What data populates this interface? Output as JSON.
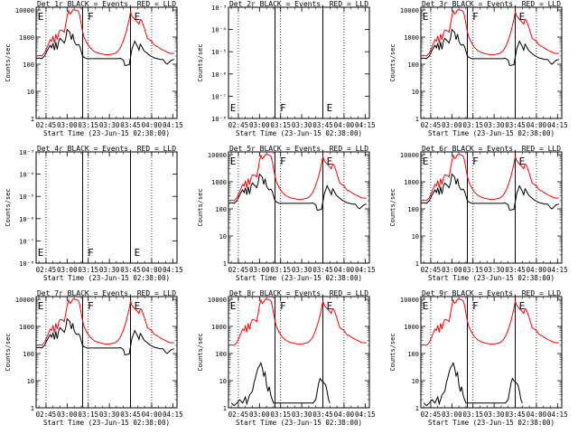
{
  "colors": {
    "events": "#000000",
    "lld": "#ff0000",
    "background": "#ffffff"
  },
  "panel_titles": [
    "Det 1r BLACK = Events, RED = LLD",
    "Det 2r BLACK = Events, RED = LLD",
    "Det 3r BLACK = Events, RED = LLD",
    "Det 4r BLACK = Events, RED = LLD",
    "Det 5r BLACK = Events, RED = LLD",
    "Det 6r BLACK = Events, RED = LLD",
    "Det 7r BLACK = Events, RED = LLD",
    "Det 8r BLACK = Events, RED = LLD",
    "Det 9r BLACK = Events, RED = LLD"
  ],
  "chart_data": {
    "type": "line",
    "xlabel": "Start Time (23-Jun-15 02:38:00)",
    "ylabel": "Counts/sec",
    "x_range_minutes": [
      0,
      100
    ],
    "x_ticks": [
      {
        "label": "02:45",
        "minutes": 7
      },
      {
        "label": "03:00",
        "minutes": 22
      },
      {
        "label": "03:15",
        "minutes": 37
      },
      {
        "label": "03:30",
        "minutes": 52
      },
      {
        "label": "03:45",
        "minutes": 67
      },
      {
        "label": "04:00",
        "minutes": 82
      },
      {
        "label": "04:15",
        "minutes": 97
      }
    ],
    "y_log_ticks_normal": [
      {
        "label": "1",
        "value": 1
      },
      {
        "label": "10",
        "value": 10
      },
      {
        "label": "100",
        "value": 100
      },
      {
        "label": "1000",
        "value": 1000
      },
      {
        "label": "10000",
        "value": 10000
      }
    ],
    "y_ticks_tiny": [
      {
        "label": "10⁻⁸",
        "frac": 0.0
      },
      {
        "label": "10⁻⁷",
        "frac": 0.2
      },
      {
        "label": "10⁻⁶",
        "frac": 0.4
      },
      {
        "label": "10⁻⁵",
        "frac": 0.6
      },
      {
        "label": "10⁻⁴",
        "frac": 0.8
      },
      {
        "label": "10⁻³",
        "frac": 1.0
      }
    ],
    "dotted_lines_minutes": [
      7,
      37,
      82
    ],
    "solid_lines_minutes": [
      33,
      67
    ],
    "segment_flags": [
      {
        "label": "E",
        "minutes": 0.5
      },
      {
        "label": "F",
        "minutes": 36
      },
      {
        "label": "E",
        "minutes": 69
      }
    ],
    "events_typical": [
      [
        0,
        160
      ],
      [
        2,
        170
      ],
      [
        4,
        160
      ],
      [
        6,
        200
      ],
      [
        8,
        330
      ],
      [
        10,
        500
      ],
      [
        11,
        400
      ],
      [
        12,
        600
      ],
      [
        13,
        330
      ],
      [
        14,
        650
      ],
      [
        15,
        350
      ],
      [
        16,
        700
      ],
      [
        17,
        900
      ],
      [
        19,
        700
      ],
      [
        20,
        600
      ],
      [
        21,
        900
      ],
      [
        22,
        1900
      ],
      [
        24,
        1500
      ],
      [
        25,
        800
      ],
      [
        26,
        1300
      ],
      [
        27,
        700
      ],
      [
        28,
        550
      ],
      [
        29,
        500
      ],
      [
        30,
        540
      ],
      [
        31,
        450
      ],
      [
        32,
        300
      ],
      [
        33,
        200
      ],
      [
        34,
        180
      ],
      [
        36,
        160
      ],
      [
        40,
        160
      ],
      [
        45,
        160
      ],
      [
        50,
        160
      ],
      [
        55,
        160
      ],
      [
        58,
        160
      ],
      [
        60,
        165
      ],
      [
        62,
        140
      ],
      [
        63,
        90
      ],
      [
        64,
        90
      ],
      [
        65,
        95
      ],
      [
        66,
        95
      ],
      [
        68,
        360
      ],
      [
        69,
        500
      ],
      [
        70,
        700
      ],
      [
        71,
        560
      ],
      [
        72,
        450
      ],
      [
        73,
        330
      ],
      [
        74,
        550
      ],
      [
        75,
        450
      ],
      [
        76,
        350
      ],
      [
        77,
        300
      ],
      [
        79,
        250
      ],
      [
        80,
        220
      ],
      [
        82,
        190
      ],
      [
        84,
        170
      ],
      [
        86,
        160
      ],
      [
        88,
        150
      ],
      [
        90,
        150
      ],
      [
        92,
        110
      ],
      [
        93,
        100
      ],
      [
        96,
        140
      ],
      [
        98,
        150
      ]
    ],
    "lld_typical": [
      [
        0,
        200
      ],
      [
        2,
        210
      ],
      [
        4,
        200
      ],
      [
        6,
        260
      ],
      [
        8,
        450
      ],
      [
        10,
        800
      ],
      [
        11,
        700
      ],
      [
        12,
        1100
      ],
      [
        13,
        600
      ],
      [
        14,
        1300
      ],
      [
        15,
        800
      ],
      [
        16,
        1400
      ],
      [
        17,
        1800
      ],
      [
        19,
        1700
      ],
      [
        20,
        1500
      ],
      [
        21,
        3000
      ],
      [
        22,
        6000
      ],
      [
        23,
        9500
      ],
      [
        24,
        7000
      ],
      [
        25,
        8000
      ],
      [
        26,
        10000
      ],
      [
        28,
        10000
      ],
      [
        30,
        9000
      ],
      [
        31,
        6000
      ],
      [
        32,
        3000
      ],
      [
        33,
        1600
      ],
      [
        34,
        1000
      ],
      [
        36,
        600
      ],
      [
        38,
        420
      ],
      [
        40,
        330
      ],
      [
        42,
        280
      ],
      [
        45,
        250
      ],
      [
        48,
        230
      ],
      [
        50,
        220
      ],
      [
        53,
        230
      ],
      [
        56,
        250
      ],
      [
        58,
        300
      ],
      [
        60,
        420
      ],
      [
        62,
        750
      ],
      [
        64,
        1600
      ],
      [
        66,
        4500
      ],
      [
        67,
        8500
      ],
      [
        68,
        6000
      ],
      [
        70,
        4500
      ],
      [
        72,
        3500
      ],
      [
        73,
        3000
      ],
      [
        74,
        4500
      ],
      [
        75,
        4000
      ],
      [
        77,
        2000
      ],
      [
        79,
        900
      ],
      [
        82,
        700
      ],
      [
        84,
        500
      ],
      [
        86,
        450
      ],
      [
        88,
        380
      ],
      [
        90,
        330
      ],
      [
        92,
        300
      ],
      [
        94,
        260
      ],
      [
        96,
        250
      ],
      [
        98,
        250
      ]
    ],
    "events_sparse": [
      [
        2,
        1.5
      ],
      [
        4,
        1.2
      ],
      [
        6,
        1.5
      ],
      [
        8,
        2
      ],
      [
        10,
        1.5
      ],
      [
        12,
        2.5
      ],
      [
        13,
        1.4
      ],
      [
        14,
        2
      ],
      [
        15,
        3
      ],
      [
        17,
        4
      ],
      [
        18,
        8
      ],
      [
        19,
        12
      ],
      [
        20,
        20
      ],
      [
        21,
        30
      ],
      [
        22,
        35
      ],
      [
        23,
        45
      ],
      [
        24,
        30
      ],
      [
        25,
        15
      ],
      [
        26,
        20
      ],
      [
        27,
        7
      ],
      [
        28,
        4
      ],
      [
        29,
        6
      ],
      [
        30,
        3
      ],
      [
        31,
        2
      ],
      [
        32,
        1.5
      ],
      [
        60,
        1.5
      ],
      [
        62,
        2
      ],
      [
        64,
        8
      ],
      [
        65,
        12
      ],
      [
        66,
        10
      ],
      [
        67,
        9
      ],
      [
        69,
        7
      ],
      [
        70,
        4
      ],
      [
        71,
        2
      ],
      [
        72,
        1.5
      ]
    ],
    "panels": [
      {
        "events": "typical",
        "lld": "typical",
        "y_axis": "log"
      },
      {
        "events": "none",
        "lld": "none",
        "y_axis": "tiny"
      },
      {
        "events": "typical",
        "lld": "typical",
        "y_axis": "log"
      },
      {
        "events": "none",
        "lld": "none",
        "y_axis": "tiny"
      },
      {
        "events": "typical",
        "lld": "typical",
        "y_axis": "log"
      },
      {
        "events": "typical",
        "lld": "typical",
        "y_axis": "log"
      },
      {
        "events": "typical",
        "lld": "typical",
        "y_axis": "log"
      },
      {
        "events": "sparse",
        "lld": "typical",
        "y_axis": "log"
      },
      {
        "events": "sparse",
        "lld": "typical",
        "y_axis": "log"
      }
    ]
  }
}
